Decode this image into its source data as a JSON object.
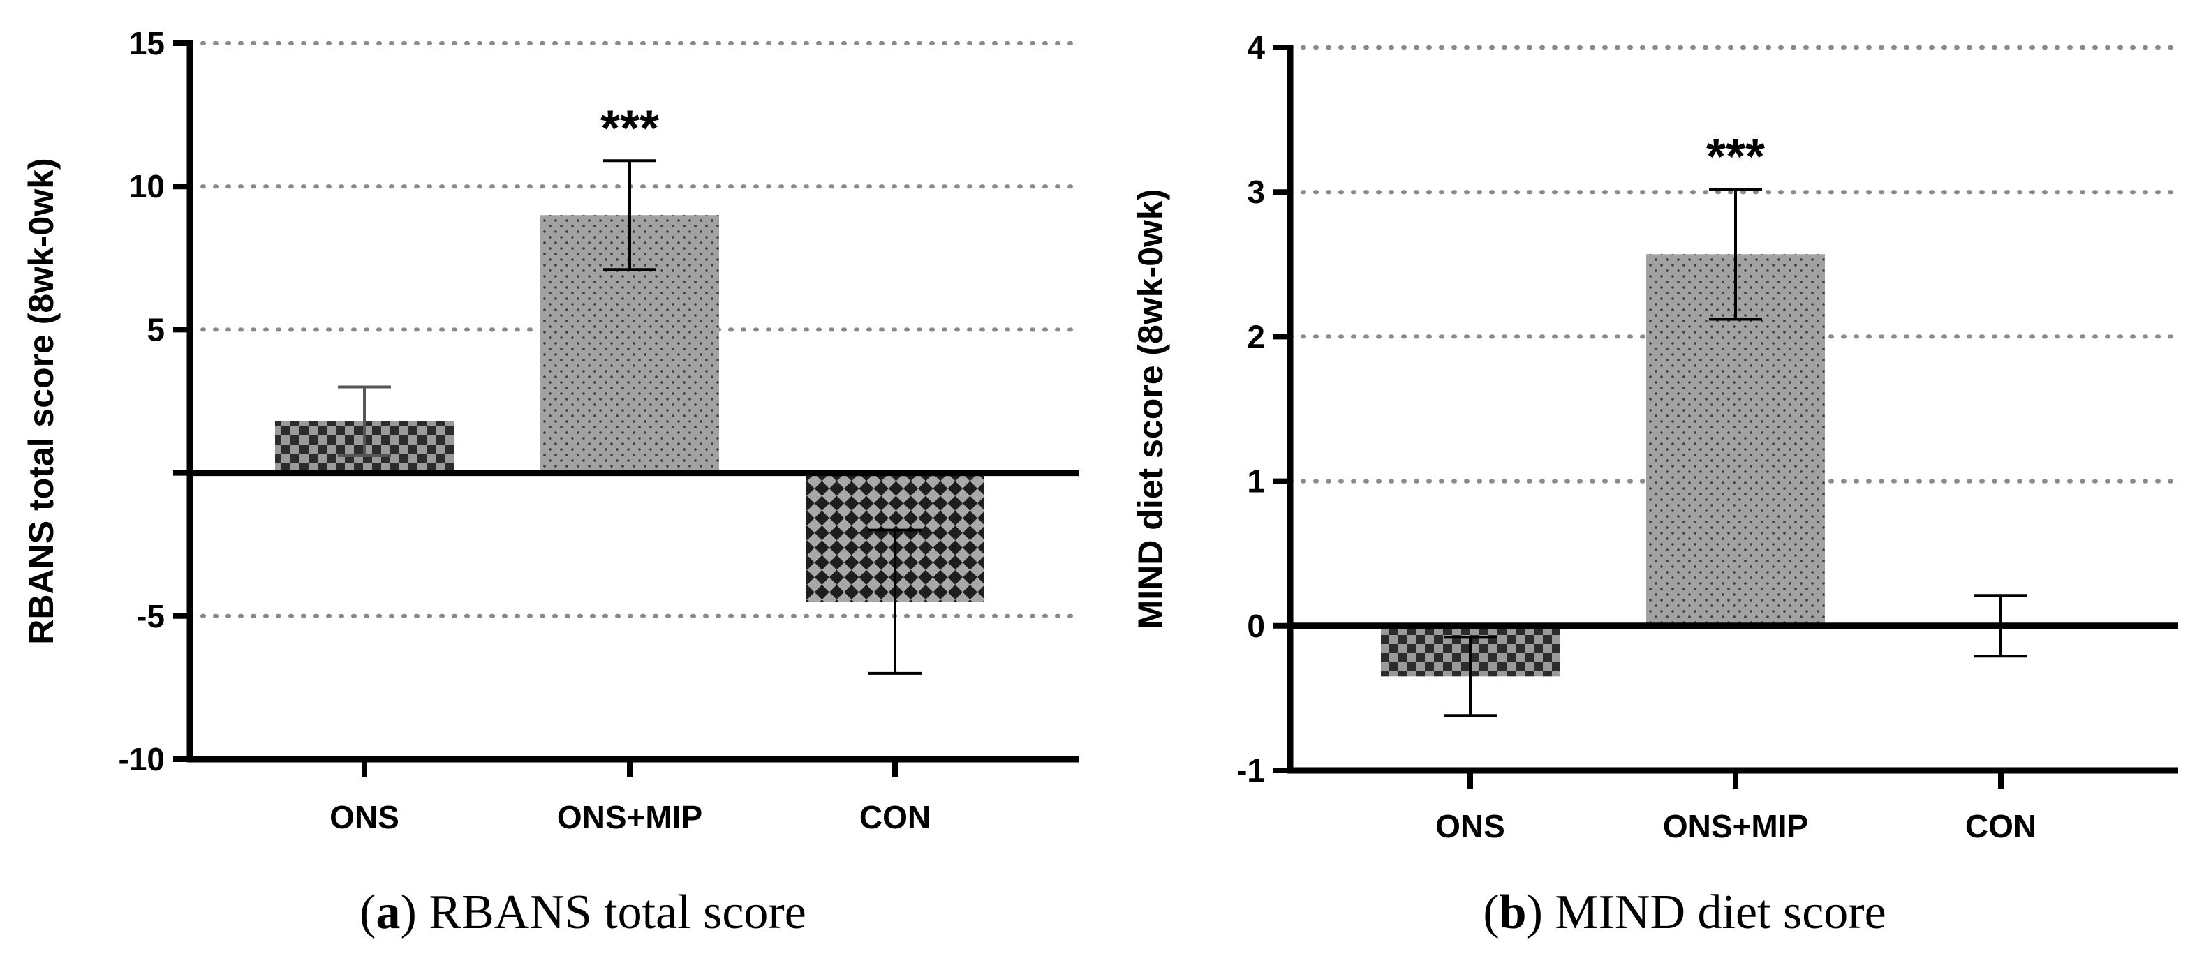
{
  "chart_data": [
    {
      "type": "bar",
      "panel_letter": "a",
      "caption": "RBANS total score",
      "categories": [
        "ONS",
        "ONS+MIP",
        "CON"
      ],
      "values": [
        1.8,
        9.0,
        -4.5
      ],
      "errors": [
        1.2,
        1.9,
        2.5
      ],
      "error_colors": [
        "#555555",
        "#000000",
        "#000000"
      ],
      "fills": [
        "check",
        "dots",
        "diamond"
      ],
      "significance": [
        null,
        "***",
        null
      ],
      "ylabel": "RBANS total score (8wk-0wk)",
      "ylim": [
        -10,
        15
      ],
      "yticks": [
        -10,
        -5,
        5,
        10,
        15
      ],
      "gridlines": [
        -5,
        5,
        10,
        15
      ]
    },
    {
      "type": "bar",
      "panel_letter": "b",
      "caption": "MIND diet score",
      "categories": [
        "ONS",
        "ONS+MIP",
        "CON"
      ],
      "values": [
        -0.35,
        2.57,
        0.0
      ],
      "errors": [
        0.27,
        0.45,
        0.21
      ],
      "error_colors": [
        "#000000",
        "#000000",
        "#000000"
      ],
      "fills": [
        "check",
        "dots",
        "none"
      ],
      "significance": [
        null,
        "***",
        null
      ],
      "ylabel": "MIND diet score (8wk-0wk)",
      "ylim": [
        -1,
        4
      ],
      "yticks": [
        -1,
        0,
        1,
        2,
        3,
        4
      ],
      "gridlines": [
        1,
        2,
        3,
        4
      ]
    }
  ]
}
